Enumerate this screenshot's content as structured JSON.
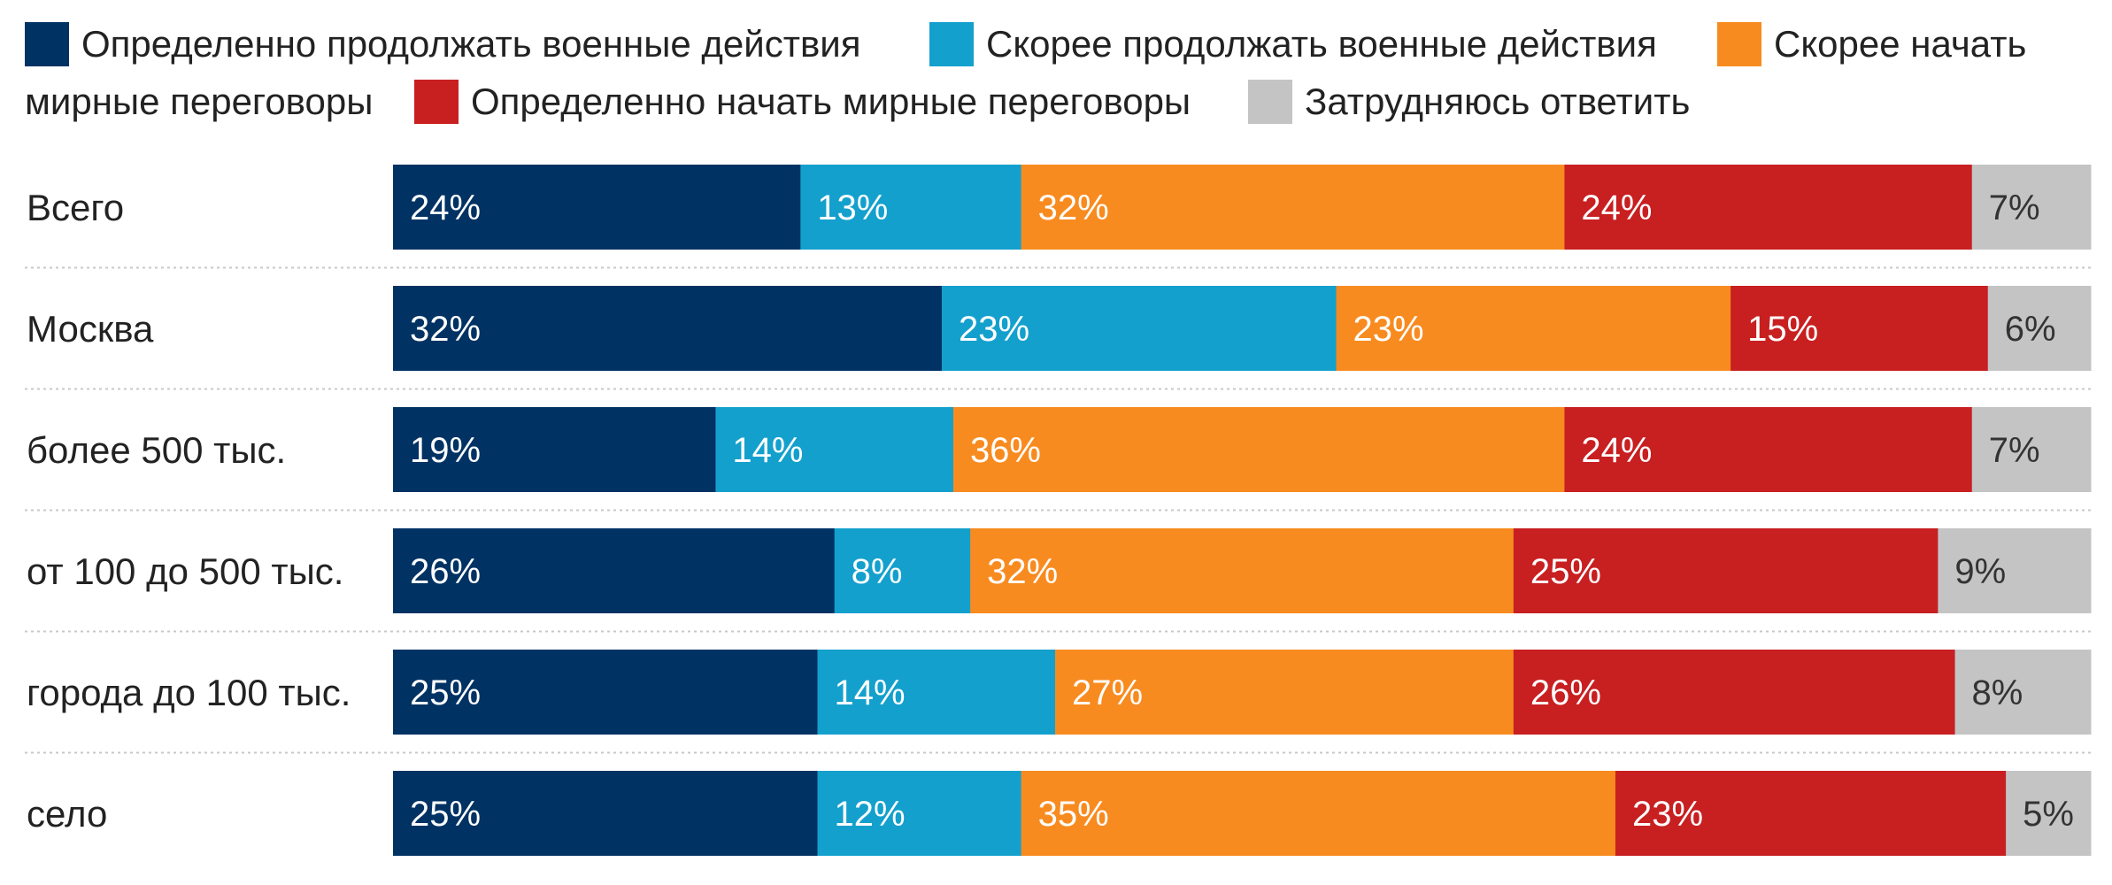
{
  "chart_data": {
    "type": "bar",
    "orientation": "horizontal",
    "stacked": true,
    "unit": "%",
    "legend_position": "top",
    "grid": false,
    "categories": [
      "Всего",
      "Москва",
      "более 500 тыс.",
      "от 100 до 500 тыс.",
      "города до 100 тыс.",
      "село"
    ],
    "series": [
      {
        "name": "Определенно продолжать военные действия",
        "color": "#003263",
        "label_color": "#ffffff",
        "values": [
          24,
          32,
          19,
          26,
          25,
          25
        ]
      },
      {
        "name": "Скорее продолжать военные действия",
        "color": "#14a0cd",
        "label_color": "#ffffff",
        "values": [
          13,
          23,
          14,
          8,
          14,
          12
        ]
      },
      {
        "name": "Скорее начать мирные переговоры",
        "color": "#f88b1f",
        "label_color": "#ffffff",
        "values": [
          32,
          23,
          36,
          32,
          27,
          35
        ]
      },
      {
        "name": "Определенно начать мирные переговоры",
        "color": "#c81f21",
        "label_color": "#ffffff",
        "values": [
          24,
          15,
          24,
          25,
          26,
          23
        ]
      },
      {
        "name": "Затрудняюсь ответить",
        "color": "#c4c4c4",
        "label_color": "#333333",
        "values": [
          7,
          6,
          7,
          9,
          8,
          5
        ]
      }
    ]
  }
}
